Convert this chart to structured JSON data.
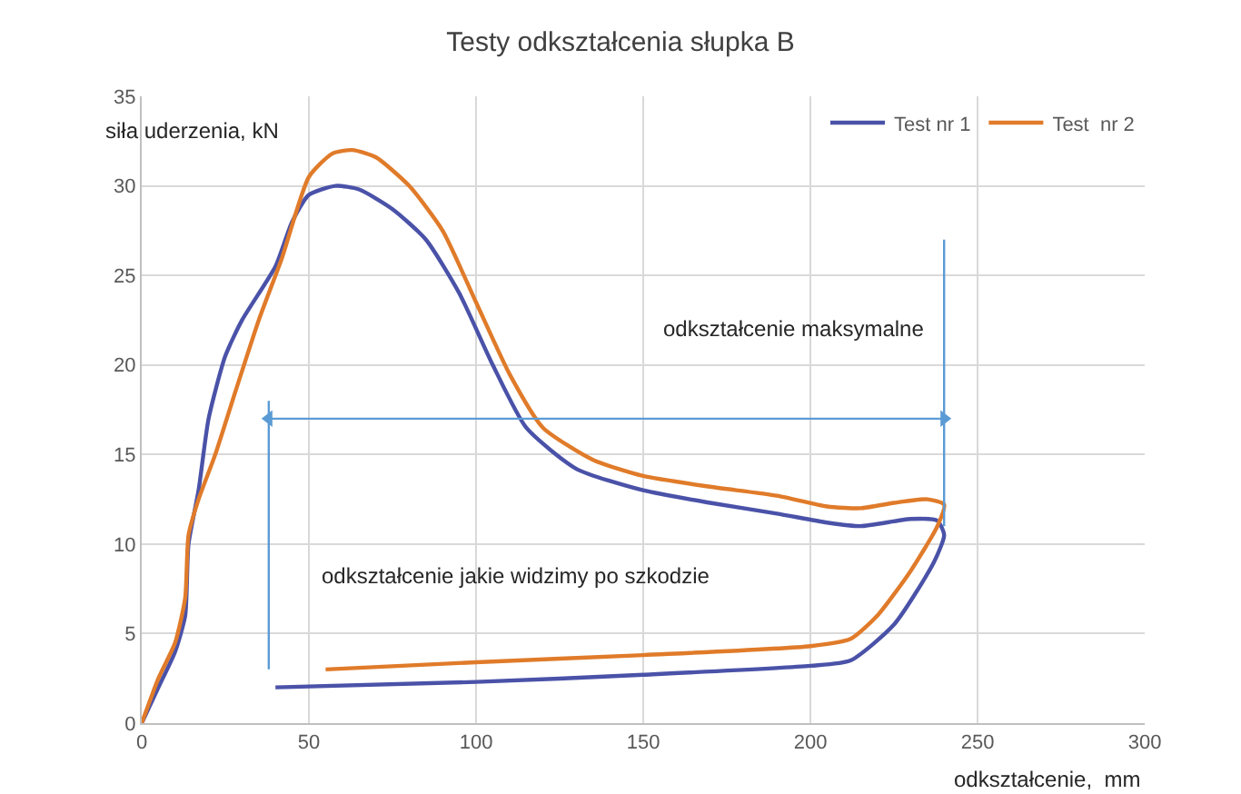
{
  "chart_data": {
    "type": "line",
    "title": "Testy odkształcenia słupka B",
    "xlabel": "odkształcenie,  mm",
    "ylabel": "siła uderzenia, kN",
    "xlim": [
      0,
      300
    ],
    "xticks": [
      0,
      50,
      100,
      150,
      200,
      250,
      300
    ],
    "ylim": [
      0,
      35
    ],
    "yticks": [
      0,
      5,
      10,
      15,
      20,
      25,
      30,
      35
    ],
    "grid": true,
    "legend": "top right",
    "marker": "none",
    "line_style": "solid",
    "annotations": [
      "odkształcenie maksymalne",
      "odkształcenie jakie widzimy po szkodzie"
    ],
    "series": [
      {
        "name": "Test nr 1",
        "color": "#4a52a8",
        "x": [
          0,
          5,
          10,
          13,
          14,
          17,
          20,
          25,
          30,
          40,
          45,
          50,
          58,
          65,
          75,
          85,
          95,
          105,
          115,
          130,
          150,
          170,
          190,
          205,
          215,
          230,
          238,
          240,
          237,
          225,
          212,
          200,
          150,
          100,
          40
        ],
        "values": [
          0,
          2,
          4,
          6,
          10,
          13,
          17,
          20.5,
          22.5,
          25.5,
          28,
          29.5,
          30,
          29.8,
          28.7,
          27,
          24,
          20,
          16.5,
          14.2,
          13,
          12.3,
          11.7,
          11.2,
          11,
          11.4,
          11.3,
          10.5,
          9,
          5.5,
          3.5,
          3.2,
          2.7,
          2.3,
          2
        ]
      },
      {
        "name": "Test  nr 2",
        "color": "#e07b2a",
        "x": [
          0,
          5,
          10,
          13,
          14,
          17,
          22,
          28,
          35,
          42,
          50,
          57,
          63,
          70,
          80,
          90,
          100,
          110,
          120,
          135,
          150,
          170,
          190,
          205,
          215,
          225,
          235,
          240,
          238,
          230,
          220,
          212,
          200,
          150,
          100,
          55
        ],
        "values": [
          0,
          2.5,
          4.5,
          7,
          10.5,
          12.5,
          15,
          18.5,
          22.5,
          26,
          30.5,
          31.8,
          32,
          31.6,
          30,
          27.5,
          23.5,
          19.5,
          16.5,
          14.7,
          13.8,
          13.2,
          12.7,
          12.1,
          12,
          12.3,
          12.5,
          12.2,
          11,
          8.5,
          6,
          4.7,
          4.3,
          3.8,
          3.4,
          3
        ]
      },
      {
        "color": "#5b9bd5",
        "x": [
          38,
          38
        ],
        "values": [
          3,
          18
        ]
      },
      {
        "color": "#5b9bd5",
        "x": [
          240,
          240
        ],
        "values": [
          11,
          27
        ]
      },
      {
        "color": "#5b9bd5",
        "x": [
          38,
          240
        ],
        "values": [
          17,
          17
        ],
        "marker": "triangle"
      }
    ]
  }
}
